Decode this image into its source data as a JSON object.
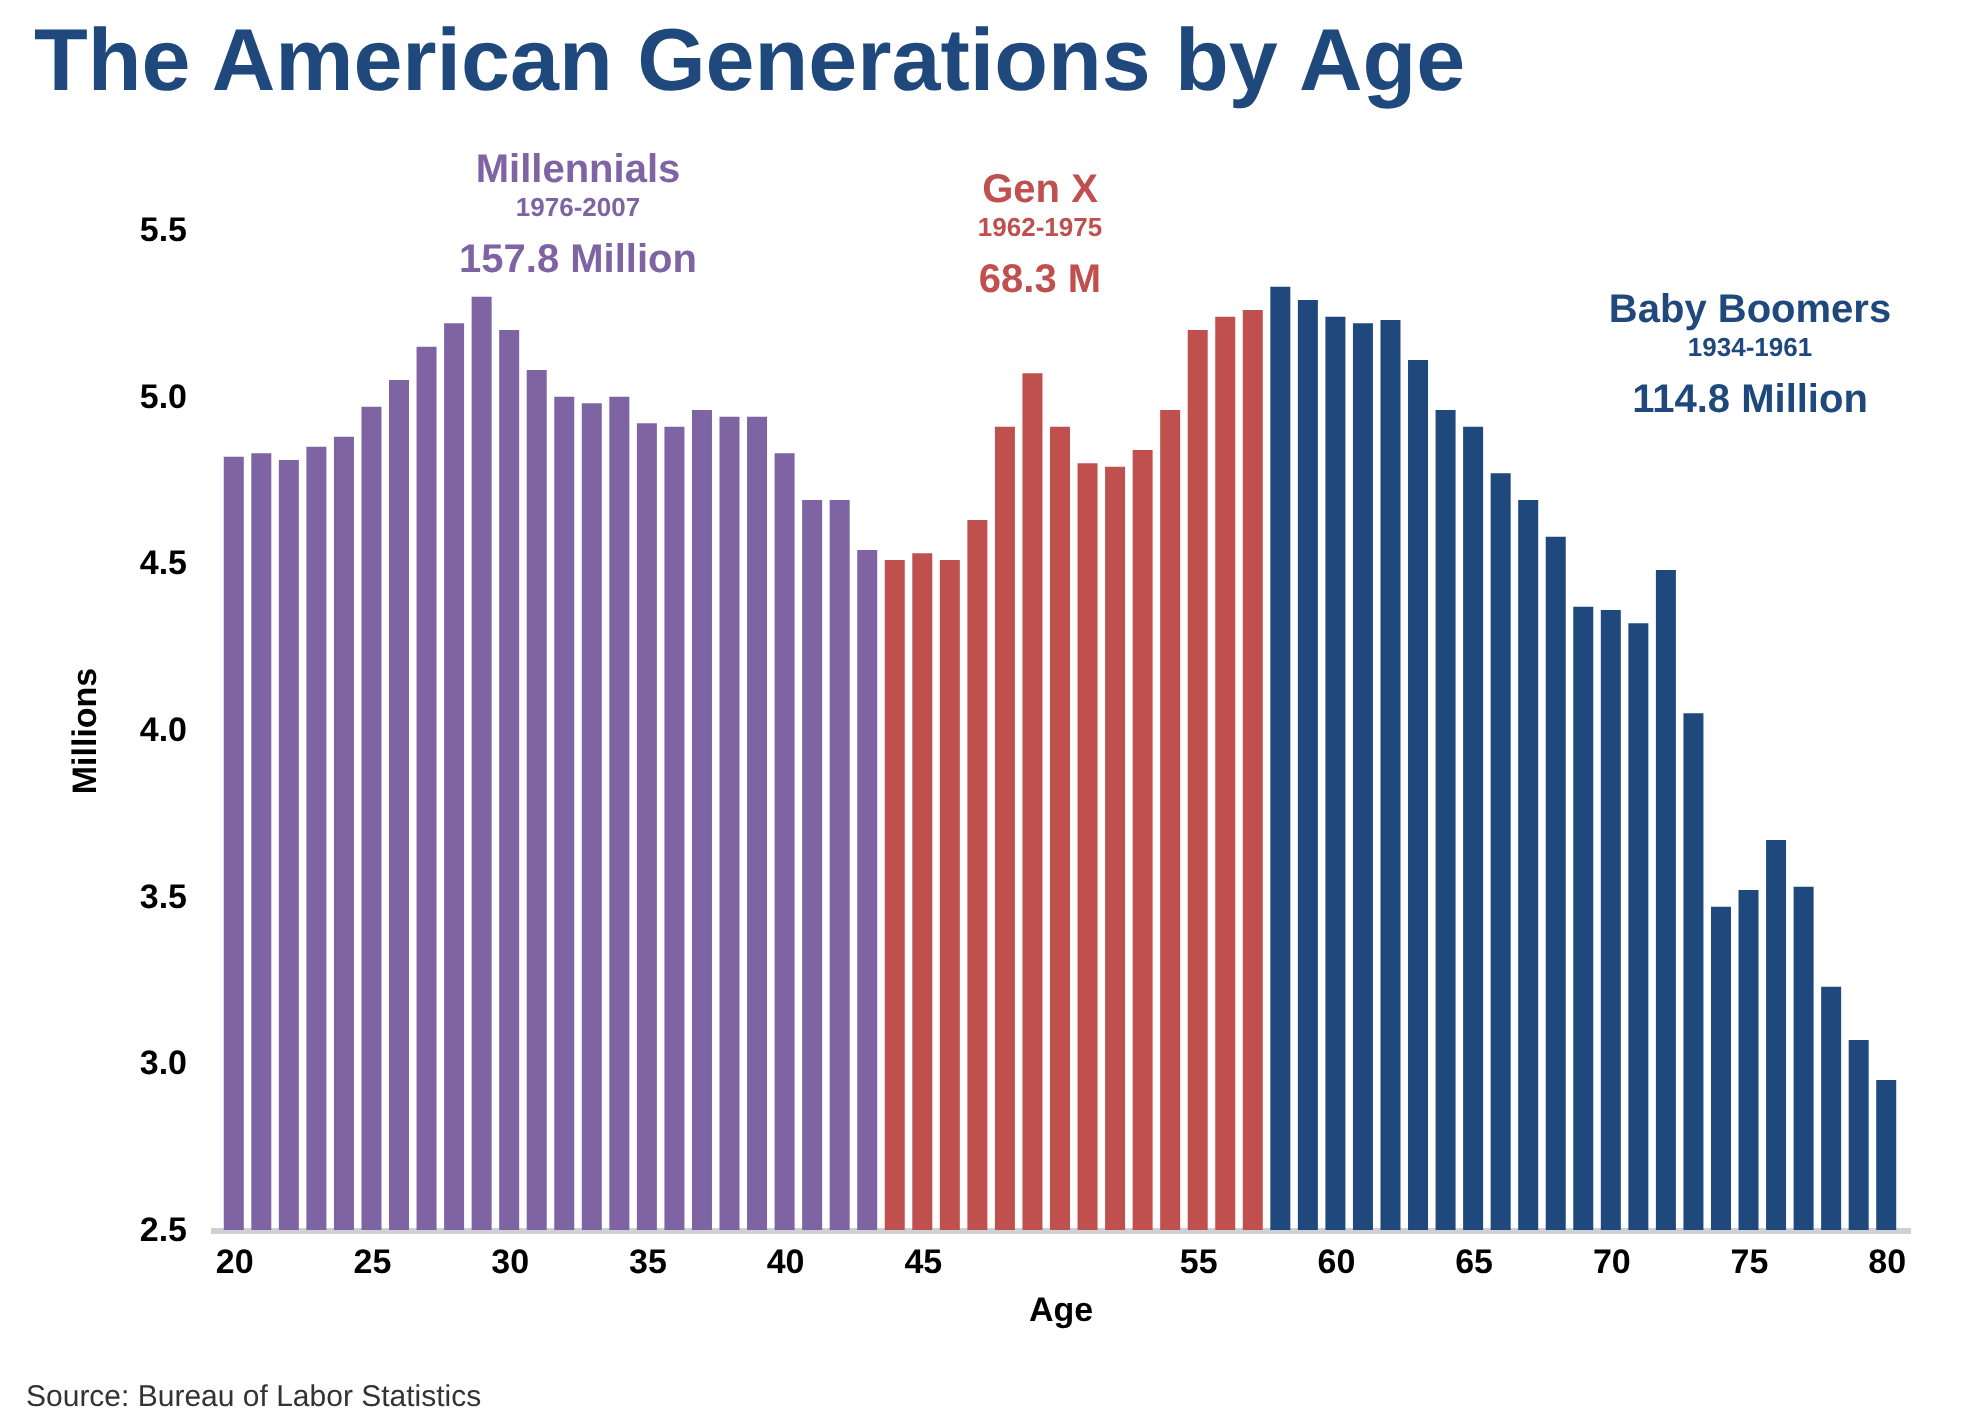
{
  "chart_data": {
    "type": "bar",
    "title": "The American Generations by Age",
    "xlabel": "Age",
    "ylabel": "Millions",
    "series": [
      {
        "name": "Millennials",
        "color": "#7e64a3",
        "x": [
          20,
          21,
          22,
          23,
          24,
          25,
          26,
          27,
          28,
          29,
          30,
          31,
          32,
          33,
          34,
          35,
          36,
          37,
          38,
          39,
          40,
          41,
          42,
          43
        ],
        "values": [
          4.82,
          4.83,
          4.81,
          4.85,
          4.88,
          4.97,
          5.05,
          5.15,
          5.22,
          5.3,
          5.2,
          5.08,
          5.0,
          4.98,
          5.0,
          4.92,
          4.91,
          4.96,
          4.94,
          4.94,
          4.83,
          4.69,
          4.69,
          4.54
        ]
      },
      {
        "name": "Gen X",
        "color": "#c0504d",
        "x": [
          44,
          45,
          46,
          47,
          48,
          49,
          50,
          51,
          52,
          53,
          54,
          55,
          56,
          57
        ],
        "values": [
          4.51,
          4.53,
          4.51,
          4.63,
          4.91,
          5.07,
          4.91,
          4.8,
          4.79,
          4.84,
          4.96,
          5.2,
          5.24,
          5.26
        ]
      },
      {
        "name": "Baby Boomers",
        "color": "#1f497d",
        "x": [
          58,
          59,
          60,
          61,
          62,
          63,
          64,
          65,
          66,
          67,
          68,
          69,
          70,
          71,
          72,
          73,
          74,
          75,
          76,
          77,
          78,
          79,
          80
        ],
        "values": [
          5.33,
          5.29,
          5.24,
          5.22,
          5.23,
          5.11,
          4.96,
          4.91,
          4.77,
          4.69,
          4.58,
          4.37,
          4.36,
          4.32,
          4.48,
          4.05,
          3.47,
          3.52,
          3.67,
          3.53,
          3.23,
          3.07,
          2.95
        ]
      }
    ],
    "annotations": [
      "1976-2007",
      "157.8 Million",
      "1962-1975",
      "68.3 M",
      "1934-1961",
      "114.8 Million",
      "Source: Bureau of Labor Statistics"
    ],
    "xlim": [
      19.5,
      80.5
    ],
    "xticks": [
      20,
      25,
      30,
      35,
      40,
      45,
      55,
      60,
      65,
      70,
      75,
      80
    ],
    "ylim": [
      2.5,
      5.5
    ],
    "yticks": [
      2.5,
      {
        "value": 3,
        "label": "3.0"
      },
      3.5,
      {
        "value": 4,
        "label": "4.0"
      },
      4.5,
      {
        "value": 5,
        "label": "5.0"
      },
      5.5
    ],
    "grid": false,
    "legend": false
  }
}
